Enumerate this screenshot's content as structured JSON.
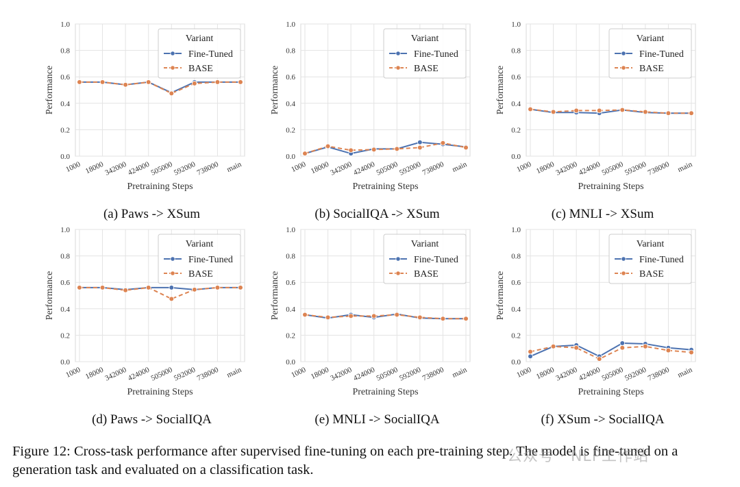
{
  "figure_caption": "Figure 12: Cross-task performance after supervised fine-tuning on each pre-training step. The model is fine-tuned on a generation task and evaluated on a classification task.",
  "watermark": "公众号 · NLP工作站",
  "colors": {
    "fine_tuned": "#4c72b0",
    "base": "#dd8452",
    "grid": "#e3e3e3",
    "frame": "#d8d8d8"
  },
  "chart_data": [
    {
      "type": "line",
      "caption": "(a) Paws -> XSum",
      "xlabel": "Pretraining Steps",
      "ylabel": "Performance",
      "ylim": [
        0,
        1.0
      ],
      "yticks": [
        "0.0",
        "0.2",
        "0.4",
        "0.6",
        "0.8",
        "1.0"
      ],
      "categories": [
        "1000",
        "18000",
        "342000",
        "424000",
        "505000",
        "592000",
        "738000",
        "main"
      ],
      "legend": {
        "title": "Variant",
        "position": "top-right"
      },
      "series": [
        {
          "name": "Fine-Tuned",
          "values": [
            0.56,
            0.56,
            0.54,
            0.56,
            0.48,
            0.56,
            0.56,
            0.56
          ]
        },
        {
          "name": "BASE",
          "values": [
            0.56,
            0.56,
            0.54,
            0.56,
            0.475,
            0.55,
            0.56,
            0.56
          ]
        }
      ]
    },
    {
      "type": "line",
      "caption": "(b) SocialIQA -> XSum",
      "xlabel": "Pretraining Steps",
      "ylabel": "Performance",
      "ylim": [
        0,
        1.0
      ],
      "yticks": [
        "0.0",
        "0.2",
        "0.4",
        "0.6",
        "0.8",
        "1.0"
      ],
      "categories": [
        "1000",
        "18000",
        "342000",
        "424000",
        "505000",
        "592000",
        "738000",
        "main"
      ],
      "legend": {
        "title": "Variant",
        "position": "top-right"
      },
      "series": [
        {
          "name": "Fine-Tuned",
          "values": [
            0.02,
            0.07,
            0.02,
            0.055,
            0.055,
            0.105,
            0.09,
            0.07
          ]
        },
        {
          "name": "BASE",
          "values": [
            0.02,
            0.075,
            0.045,
            0.05,
            0.055,
            0.065,
            0.1,
            0.065
          ]
        }
      ]
    },
    {
      "type": "line",
      "caption": "(c) MNLI -> XSum",
      "xlabel": "Pretraining Steps",
      "ylabel": "Performance",
      "ylim": [
        0,
        1.0
      ],
      "yticks": [
        "0.0",
        "0.2",
        "0.4",
        "0.6",
        "0.8",
        "1.0"
      ],
      "categories": [
        "1000",
        "18000",
        "342000",
        "424000",
        "505000",
        "592000",
        "738000",
        "main"
      ],
      "legend": {
        "title": "Variant",
        "position": "top-right"
      },
      "series": [
        {
          "name": "Fine-Tuned",
          "values": [
            0.355,
            0.33,
            0.33,
            0.325,
            0.35,
            0.33,
            0.325,
            0.325
          ]
        },
        {
          "name": "BASE",
          "values": [
            0.355,
            0.335,
            0.345,
            0.345,
            0.35,
            0.335,
            0.325,
            0.325
          ]
        }
      ]
    },
    {
      "type": "line",
      "caption": "(d) Paws -> SocialIQA",
      "xlabel": "Pretraining Steps",
      "ylabel": "Performance",
      "ylim": [
        0,
        1.0
      ],
      "yticks": [
        "0.0",
        "0.2",
        "0.4",
        "0.6",
        "0.8",
        "1.0"
      ],
      "categories": [
        "1000",
        "18000",
        "342000",
        "424000",
        "505000",
        "592000",
        "738000",
        "main"
      ],
      "legend": {
        "title": "Variant",
        "position": "top-right"
      },
      "series": [
        {
          "name": "Fine-Tuned",
          "values": [
            0.56,
            0.56,
            0.545,
            0.56,
            0.56,
            0.545,
            0.56,
            0.56
          ]
        },
        {
          "name": "BASE",
          "values": [
            0.56,
            0.56,
            0.54,
            0.56,
            0.475,
            0.545,
            0.56,
            0.56
          ]
        }
      ]
    },
    {
      "type": "line",
      "caption": "(e) MNLI -> SocialIQA",
      "xlabel": "Pretraining Steps",
      "ylabel": "Performance",
      "ylim": [
        0,
        1.0
      ],
      "yticks": [
        "0.0",
        "0.2",
        "0.4",
        "0.6",
        "0.8",
        "1.0"
      ],
      "categories": [
        "1000",
        "18000",
        "342000",
        "424000",
        "505000",
        "592000",
        "738000",
        "main"
      ],
      "legend": {
        "title": "Variant",
        "position": "top-right"
      },
      "series": [
        {
          "name": "Fine-Tuned",
          "values": [
            0.355,
            0.33,
            0.355,
            0.335,
            0.36,
            0.33,
            0.325,
            0.325
          ]
        },
        {
          "name": "BASE",
          "values": [
            0.355,
            0.335,
            0.345,
            0.345,
            0.355,
            0.335,
            0.325,
            0.325
          ]
        }
      ]
    },
    {
      "type": "line",
      "caption": "(f) XSum -> SocialIQA",
      "xlabel": "Pretraining Steps",
      "ylabel": "Performance",
      "ylim": [
        0,
        1.0
      ],
      "yticks": [
        "0.0",
        "0.2",
        "0.4",
        "0.6",
        "0.8",
        "1.0"
      ],
      "categories": [
        "1000",
        "18000",
        "342000",
        "424000",
        "505000",
        "592000",
        "738000",
        "main"
      ],
      "legend": {
        "title": "Variant",
        "position": "top-right"
      },
      "series": [
        {
          "name": "Fine-Tuned",
          "values": [
            0.04,
            0.115,
            0.125,
            0.04,
            0.14,
            0.135,
            0.105,
            0.09
          ]
        },
        {
          "name": "BASE",
          "values": [
            0.075,
            0.115,
            0.105,
            0.02,
            0.105,
            0.115,
            0.085,
            0.07
          ]
        }
      ]
    }
  ]
}
